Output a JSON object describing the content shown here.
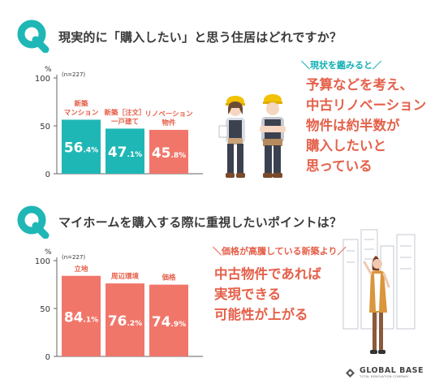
{
  "brand": {
    "name": "GLOBAL BASE",
    "tagline": "TOTAL RENOVATION COMPANY"
  },
  "section1": {
    "question": "現実的に「購入したい」と思う住居はどれですか？",
    "note_header": "＼現状を鑑みると／",
    "note_lines": [
      "予算などを考え、",
      "中古リノベーション",
      "物件は約半数が",
      "購入したいと",
      "思っている"
    ]
  },
  "section2": {
    "question": "マイホームを購入する際に重視したいポイントは？",
    "note_header": "＼価格が高騰している新築より／",
    "note_lines": [
      "中古物件であれば",
      "実現できる",
      "可能性が上がる"
    ]
  },
  "chart_data": [
    {
      "type": "bar",
      "unit": "%",
      "sample": "(n=227)",
      "ylim": [
        0,
        100
      ],
      "yticks": [
        0,
        50,
        100
      ],
      "categories": [
        [
          "新築",
          "マンション"
        ],
        [
          "新築［注文］",
          "一戸建て"
        ],
        [
          "リノベーション",
          "物件"
        ]
      ],
      "values": [
        56.4,
        47.1,
        45.8
      ],
      "value_labels": [
        [
          "56",
          ".4%"
        ],
        [
          "47",
          ".1%"
        ],
        [
          "45",
          ".8%"
        ]
      ],
      "colors": [
        "#1fb7b5",
        "#1fb7b5",
        "#f1766a"
      ],
      "label_colors": [
        "#e5604a",
        "#e5604a",
        "#e5604a"
      ]
    },
    {
      "type": "bar",
      "unit": "%",
      "sample": "(n=227)",
      "ylim": [
        0,
        100
      ],
      "yticks": [
        0,
        50,
        100
      ],
      "categories": [
        [
          "立地"
        ],
        [
          "周辺環境"
        ],
        [
          "価格"
        ]
      ],
      "values": [
        84.1,
        76.2,
        74.9
      ],
      "value_labels": [
        [
          "84",
          ".1%"
        ],
        [
          "76",
          ".2%"
        ],
        [
          "74",
          ".9%"
        ]
      ],
      "colors": [
        "#f1766a",
        "#f1766a",
        "#f1766a"
      ],
      "label_colors": [
        "#e5604a",
        "#e5604a",
        "#e5604a"
      ]
    }
  ]
}
